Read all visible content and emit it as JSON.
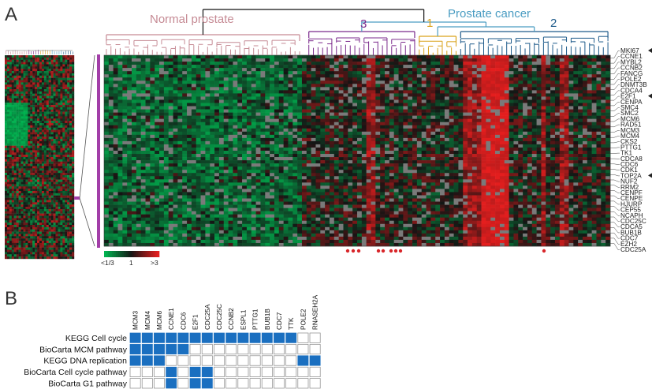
{
  "panels": {
    "a": "A",
    "b": "B"
  },
  "groups": {
    "normal": {
      "label": "Normal prostate",
      "color": "#c68b95"
    },
    "cancer": {
      "label": "Prostate cancer",
      "color": "#4a9cc2"
    },
    "c3": {
      "label": "3",
      "color": "#7b2a8c"
    },
    "c1": {
      "label": "1",
      "color": "#d9a21a"
    },
    "c2": {
      "label": "2",
      "color": "#1d5a8a"
    }
  },
  "heatmap_legend": {
    "low": "<1/3",
    "mid": "1",
    "high": ">3"
  },
  "genes": [
    "MKI67",
    "CCNE1",
    "MYBL2",
    "CCNB2",
    "FANCG",
    "POLE2",
    "DNMT3B",
    "CDCA4",
    "E2F1",
    "CENPA",
    "SMC4",
    "SMC2",
    "MCM6",
    "RAD51",
    "MCM3",
    "MCM4",
    "CKS2",
    "PTTG1",
    "TK1",
    "CDCA8",
    "CDC6",
    "CDK1",
    "TOP2A",
    "NUF2",
    "RRM2",
    "CENPF",
    "CENPE",
    "HJURP",
    "CEP55",
    "NCAPH",
    "CDC25C",
    "CDCA5",
    "BUB1B",
    "CDC7",
    "EZH2",
    "CDC25A"
  ],
  "highlighted_genes": [
    "MKI67",
    "E2F1",
    "TOP2A"
  ],
  "colors": {
    "highlight": "#d8262a",
    "membership": "#1a6fc0",
    "dot": "#d8262a",
    "arrow": "#222222"
  },
  "pathways": {
    "columns": [
      "MCM3",
      "MCM4",
      "MCM6",
      "CCNE1",
      "CDC6",
      "E2F1",
      "CDC25A",
      "CDC25C",
      "CCNB2",
      "ESPL1",
      "PTTG1",
      "BUB1B",
      "CDC7",
      "TTK",
      "POLE2",
      "RNASEH2A"
    ],
    "rows": [
      {
        "name": "KEGG Cell cycle",
        "member": [
          1,
          1,
          1,
          1,
          1,
          1,
          1,
          1,
          1,
          1,
          1,
          1,
          1,
          1,
          0,
          0
        ]
      },
      {
        "name": "BioCarta MCM pathway",
        "member": [
          1,
          1,
          1,
          1,
          1,
          0,
          0,
          0,
          0,
          0,
          0,
          0,
          0,
          0,
          0,
          0
        ]
      },
      {
        "name": "KEGG DNA replication",
        "member": [
          1,
          1,
          1,
          0,
          0,
          0,
          0,
          0,
          0,
          0,
          0,
          0,
          0,
          0,
          1,
          1
        ]
      },
      {
        "name": "BioCarta Cell cycle pathway",
        "member": [
          0,
          0,
          0,
          1,
          0,
          1,
          1,
          0,
          0,
          0,
          0,
          0,
          0,
          0,
          0,
          0
        ]
      },
      {
        "name": "BioCarta G1 pathway",
        "member": [
          0,
          0,
          0,
          1,
          0,
          1,
          1,
          0,
          0,
          0,
          0,
          0,
          0,
          0,
          0,
          0
        ]
      }
    ]
  }
}
